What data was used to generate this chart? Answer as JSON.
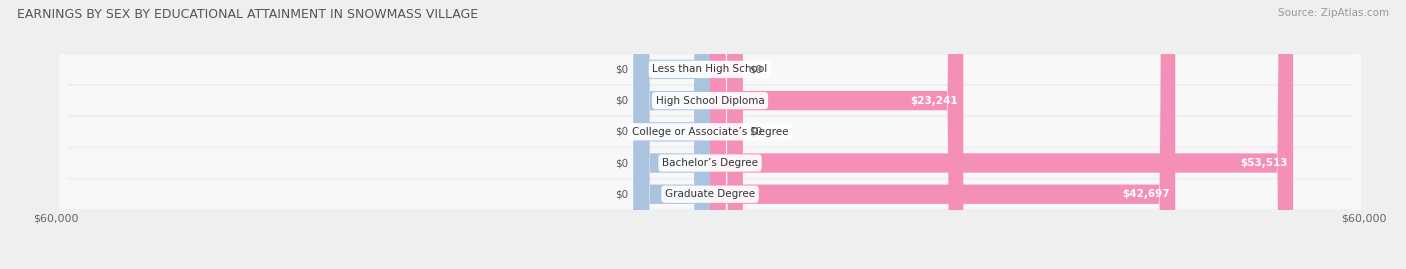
{
  "title": "EARNINGS BY SEX BY EDUCATIONAL ATTAINMENT IN SNOWMASS VILLAGE",
  "source": "Source: ZipAtlas.com",
  "categories": [
    "Less than High School",
    "High School Diploma",
    "College or Associate’s Degree",
    "Bachelor’s Degree",
    "Graduate Degree"
  ],
  "male_values": [
    0,
    0,
    0,
    0,
    0
  ],
  "female_values": [
    0,
    23241,
    0,
    53513,
    42697
  ],
  "male_color": "#aac4e0",
  "female_color": "#f490b8",
  "axis_max": 60000,
  "male_stub": 7000,
  "female_stub": 3000,
  "bg_color": "#efefef",
  "row_bg_color": "#f8f8f8",
  "title_fontsize": 9.0,
  "source_fontsize": 7.5,
  "label_fontsize": 7.5,
  "tick_fontsize": 8.0,
  "value_label_fontsize": 7.5
}
